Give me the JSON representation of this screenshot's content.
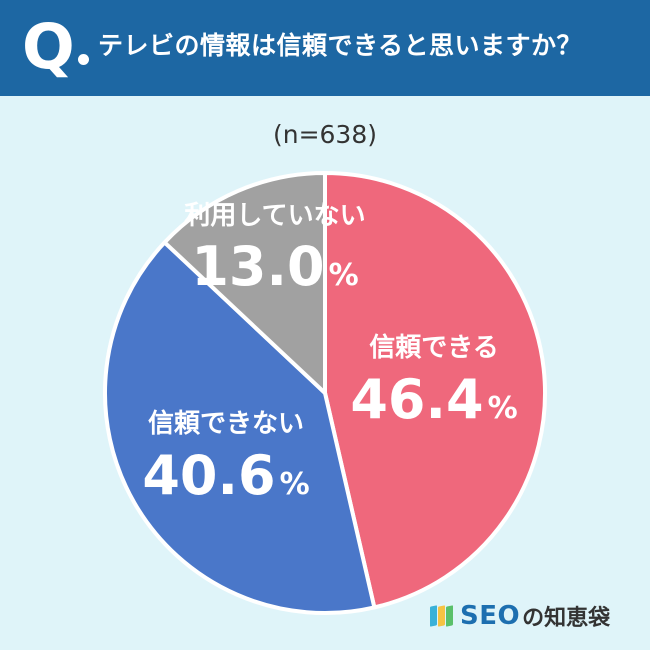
{
  "header": {
    "q_mark": "Q",
    "question": "テレビの情報は信頼できると思いますか？"
  },
  "sample_size": "(n=638)",
  "chart_data": {
    "type": "pie",
    "title": "テレビの情報は信頼できると思いますか？",
    "n": 638,
    "unit": "%",
    "slices": [
      {
        "label": "信頼できる",
        "value": 46.4,
        "value_text": "46.4",
        "color": "#ef687c"
      },
      {
        "label": "信頼できない",
        "value": 40.6,
        "value_text": "40.6",
        "color": "#4a77c9"
      },
      {
        "label": "利用していない",
        "value": 13.0,
        "value_text": "13.0",
        "color": "#a1a1a1"
      }
    ]
  },
  "logo": {
    "seo": "SEO",
    "rest": "の知恵袋"
  }
}
